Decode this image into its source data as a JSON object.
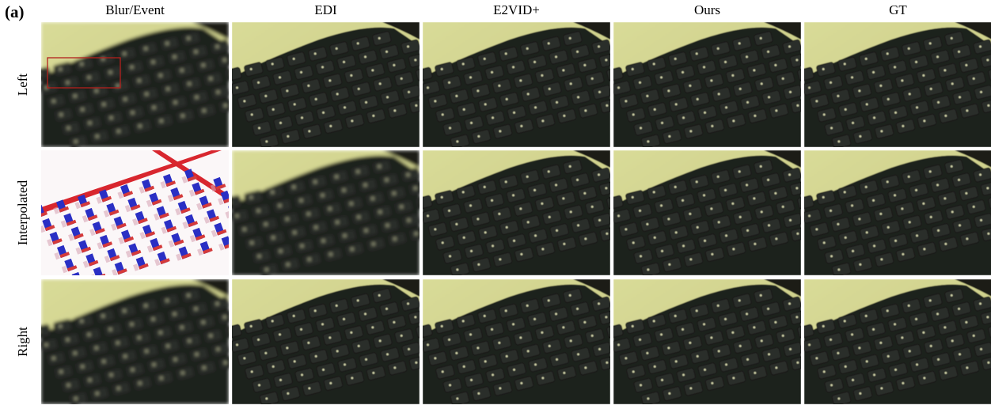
{
  "panel_label": "(a)",
  "columns": [
    "Blur/Event",
    "EDI",
    "E2VID+",
    "Ours",
    "GT"
  ],
  "rows": [
    "Left",
    "Interpolated",
    "Right"
  ]
}
